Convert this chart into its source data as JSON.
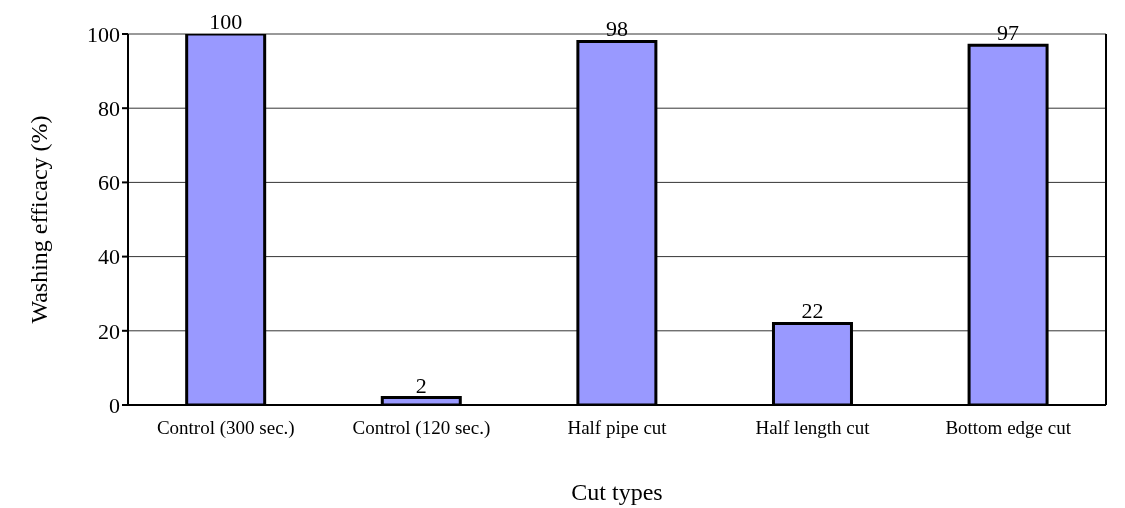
{
  "chart_data": {
    "type": "bar",
    "xlabel": "Cut types",
    "ylabel": "Washing efficacy (%)",
    "categories": [
      "Control (300 sec.)",
      "Control (120 sec.)",
      "Half pipe cut",
      "Half length cut",
      "Bottom edge cut"
    ],
    "values": [
      100,
      2,
      98,
      22,
      97
    ],
    "color": "#9999ff",
    "ylim": [
      0,
      100
    ],
    "yticks": [
      0,
      20,
      40,
      60,
      80,
      100
    ],
    "grid": "y",
    "data_labels": true
  }
}
